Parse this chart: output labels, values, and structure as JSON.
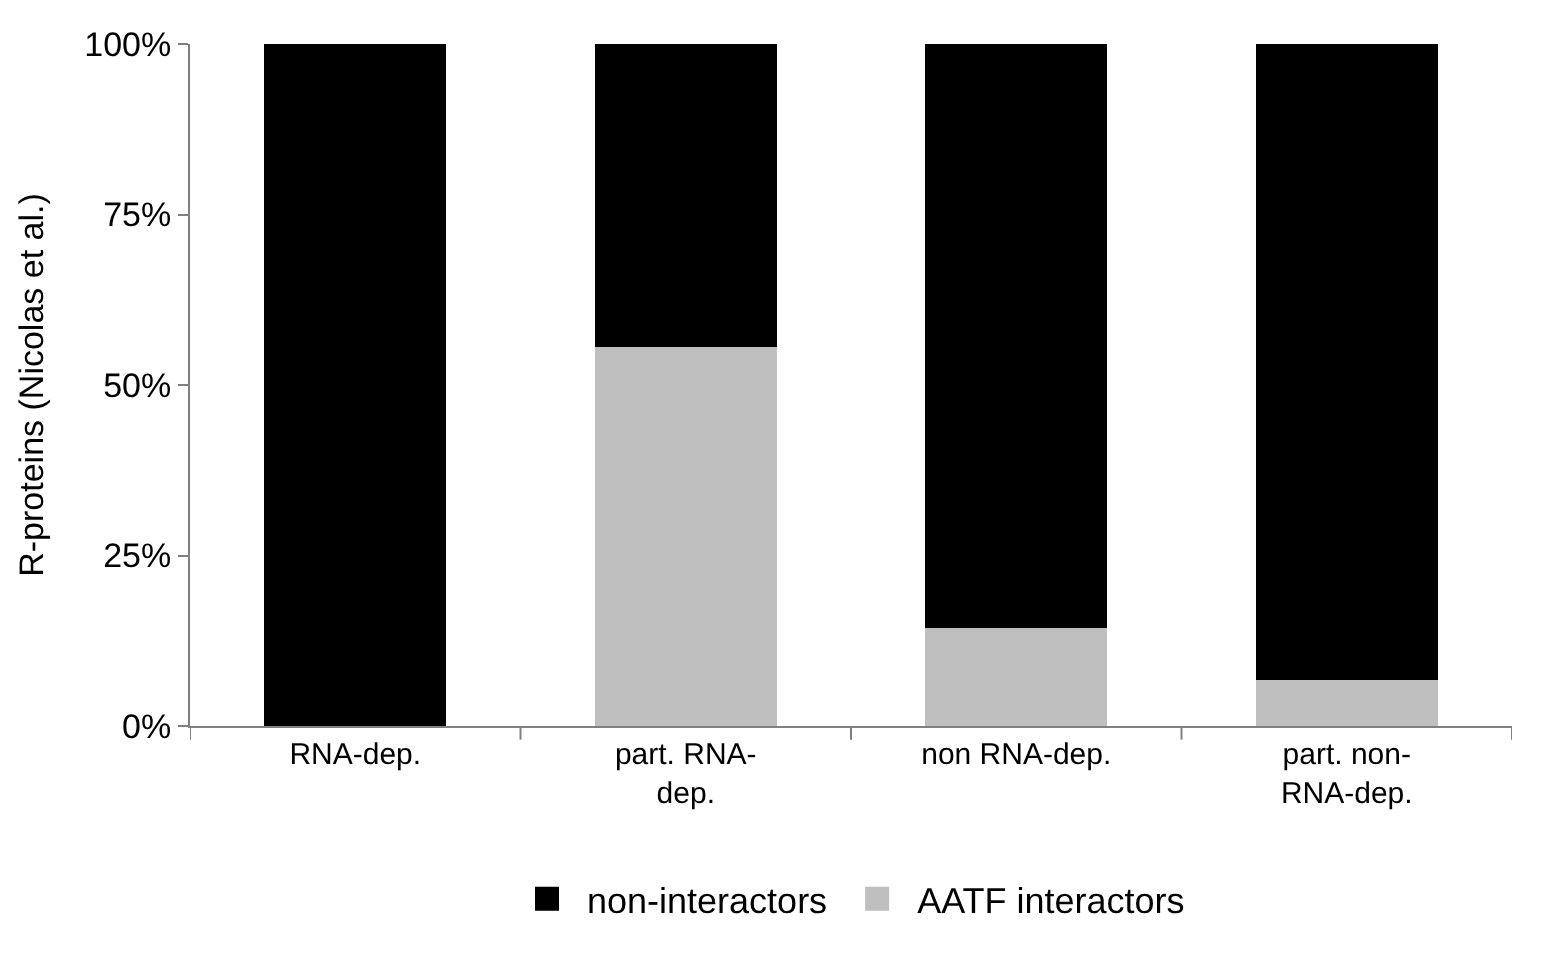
{
  "chart_data": {
    "type": "bar",
    "stacked": true,
    "ylabel": "R-proteins (Nicolas et al.)",
    "categories": [
      "RNA-dep.",
      "part. RNA-dep.",
      "non RNA-dep.",
      "part. non-RNA-dep."
    ],
    "series": [
      {
        "name": "AATF interactors",
        "color": "#bfbfbf",
        "values": [
          0,
          55.6,
          14.3,
          6.7
        ]
      },
      {
        "name": "non-interactors",
        "color": "#000000",
        "values": [
          100,
          44.4,
          85.7,
          93.3
        ]
      }
    ],
    "ylim": [
      0,
      100
    ],
    "yticks": [
      {
        "value": 0,
        "label": "0%"
      },
      {
        "value": 25,
        "label": "25%"
      },
      {
        "value": 50,
        "label": "50%"
      },
      {
        "value": 75,
        "label": "75%"
      },
      {
        "value": 100,
        "label": "100%"
      }
    ],
    "grid": false,
    "legend": "bottom"
  }
}
